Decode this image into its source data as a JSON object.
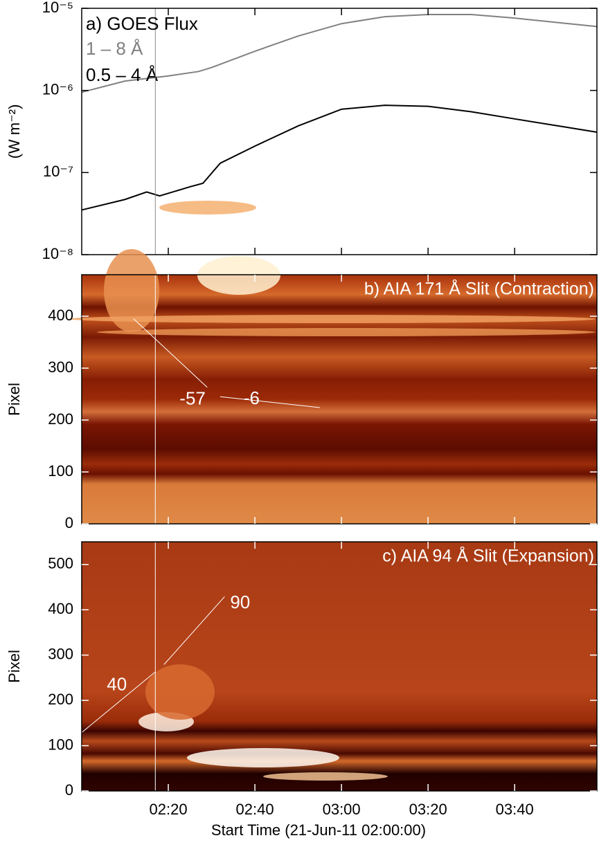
{
  "chart_data": [
    {
      "type": "line",
      "title": "a) GOES Flux",
      "ylabel": "(W m⁻²)",
      "log_y": true,
      "xlim": [
        "02:00",
        "03:59"
      ],
      "xticks": [
        "02:20",
        "02:40",
        "03:00",
        "03:20",
        "03:40"
      ],
      "ylim": [
        1e-08,
        1e-05
      ],
      "yticks": [
        {
          "value": 1e-08,
          "label": "10⁻⁸"
        },
        {
          "value": 1e-07,
          "label": "10⁻⁷"
        },
        {
          "value": 1e-06,
          "label": "10⁻⁶"
        },
        {
          "value": 1e-05,
          "label": "10⁻⁵"
        }
      ],
      "vline": "02:17",
      "series": [
        {
          "name": "1 – 8 Å",
          "color": "#808080",
          "x": [
            "02:00",
            "02:10",
            "02:20",
            "02:27",
            "02:30",
            "02:40",
            "02:50",
            "03:00",
            "03:10",
            "03:20",
            "03:30",
            "03:40",
            "03:50",
            "03:59"
          ],
          "values": [
            9.5e-07,
            1.3e-06,
            1.5e-06,
            1.7e-06,
            1.9e-06,
            3e-06,
            4.6e-06,
            6.5e-06,
            7.9e-06,
            8.4e-06,
            8.4e-06,
            7.6e-06,
            6.7e-06,
            6e-06
          ]
        },
        {
          "name": "0.5 – 4 Å",
          "color": "#000000",
          "x": [
            "02:00",
            "02:10",
            "02:15",
            "02:18",
            "02:25",
            "02:28",
            "02:32",
            "02:40",
            "02:50",
            "03:00",
            "03:10",
            "03:20",
            "03:30",
            "03:40",
            "03:50",
            "03:59"
          ],
          "values": [
            3.5e-08,
            4.7e-08,
            5.8e-08,
            5.2e-08,
            6.7e-08,
            7.4e-08,
            1.3e-07,
            2.1e-07,
            3.7e-07,
            5.9e-07,
            6.6e-07,
            6.4e-07,
            5.5e-07,
            4.5e-07,
            3.7e-07,
            3.1e-07
          ]
        }
      ]
    },
    {
      "type": "image",
      "title": "b) AIA 171 Å Slit (Contraction)",
      "ylabel": "Pixel",
      "xlim": [
        "02:00",
        "03:59"
      ],
      "xticks": [
        "02:20",
        "02:40",
        "03:00",
        "03:20",
        "03:40"
      ],
      "ylim": [
        0,
        480
      ],
      "yticks": [
        0,
        100,
        200,
        300,
        400
      ],
      "vline": "02:17",
      "fits": [
        {
          "label": "-57",
          "x": [
            "02:12",
            "02:29"
          ],
          "values": [
            395,
            263
          ]
        },
        {
          "label": "-6",
          "x": [
            "02:32",
            "02:55"
          ],
          "values": [
            245,
            224
          ]
        }
      ]
    },
    {
      "type": "image",
      "title": "c) AIA 94 Å Slit (Expansion)",
      "ylabel": "Pixel",
      "xlabel": "Start Time (21-Jun-11 02:00:00)",
      "xlim": [
        "02:00",
        "03:59"
      ],
      "xticks": [
        "02:20",
        "02:40",
        "03:00",
        "03:20",
        "03:40"
      ],
      "ylim": [
        0,
        550
      ],
      "yticks": [
        0,
        100,
        200,
        300,
        400,
        500
      ],
      "vline": "02:17",
      "fits": [
        {
          "label": "40",
          "x": [
            "02:00",
            "02:17"
          ],
          "values": [
            129,
            263
          ]
        },
        {
          "label": "90",
          "x": [
            "02:19",
            "02:33"
          ],
          "values": [
            279,
            429
          ]
        }
      ]
    }
  ]
}
